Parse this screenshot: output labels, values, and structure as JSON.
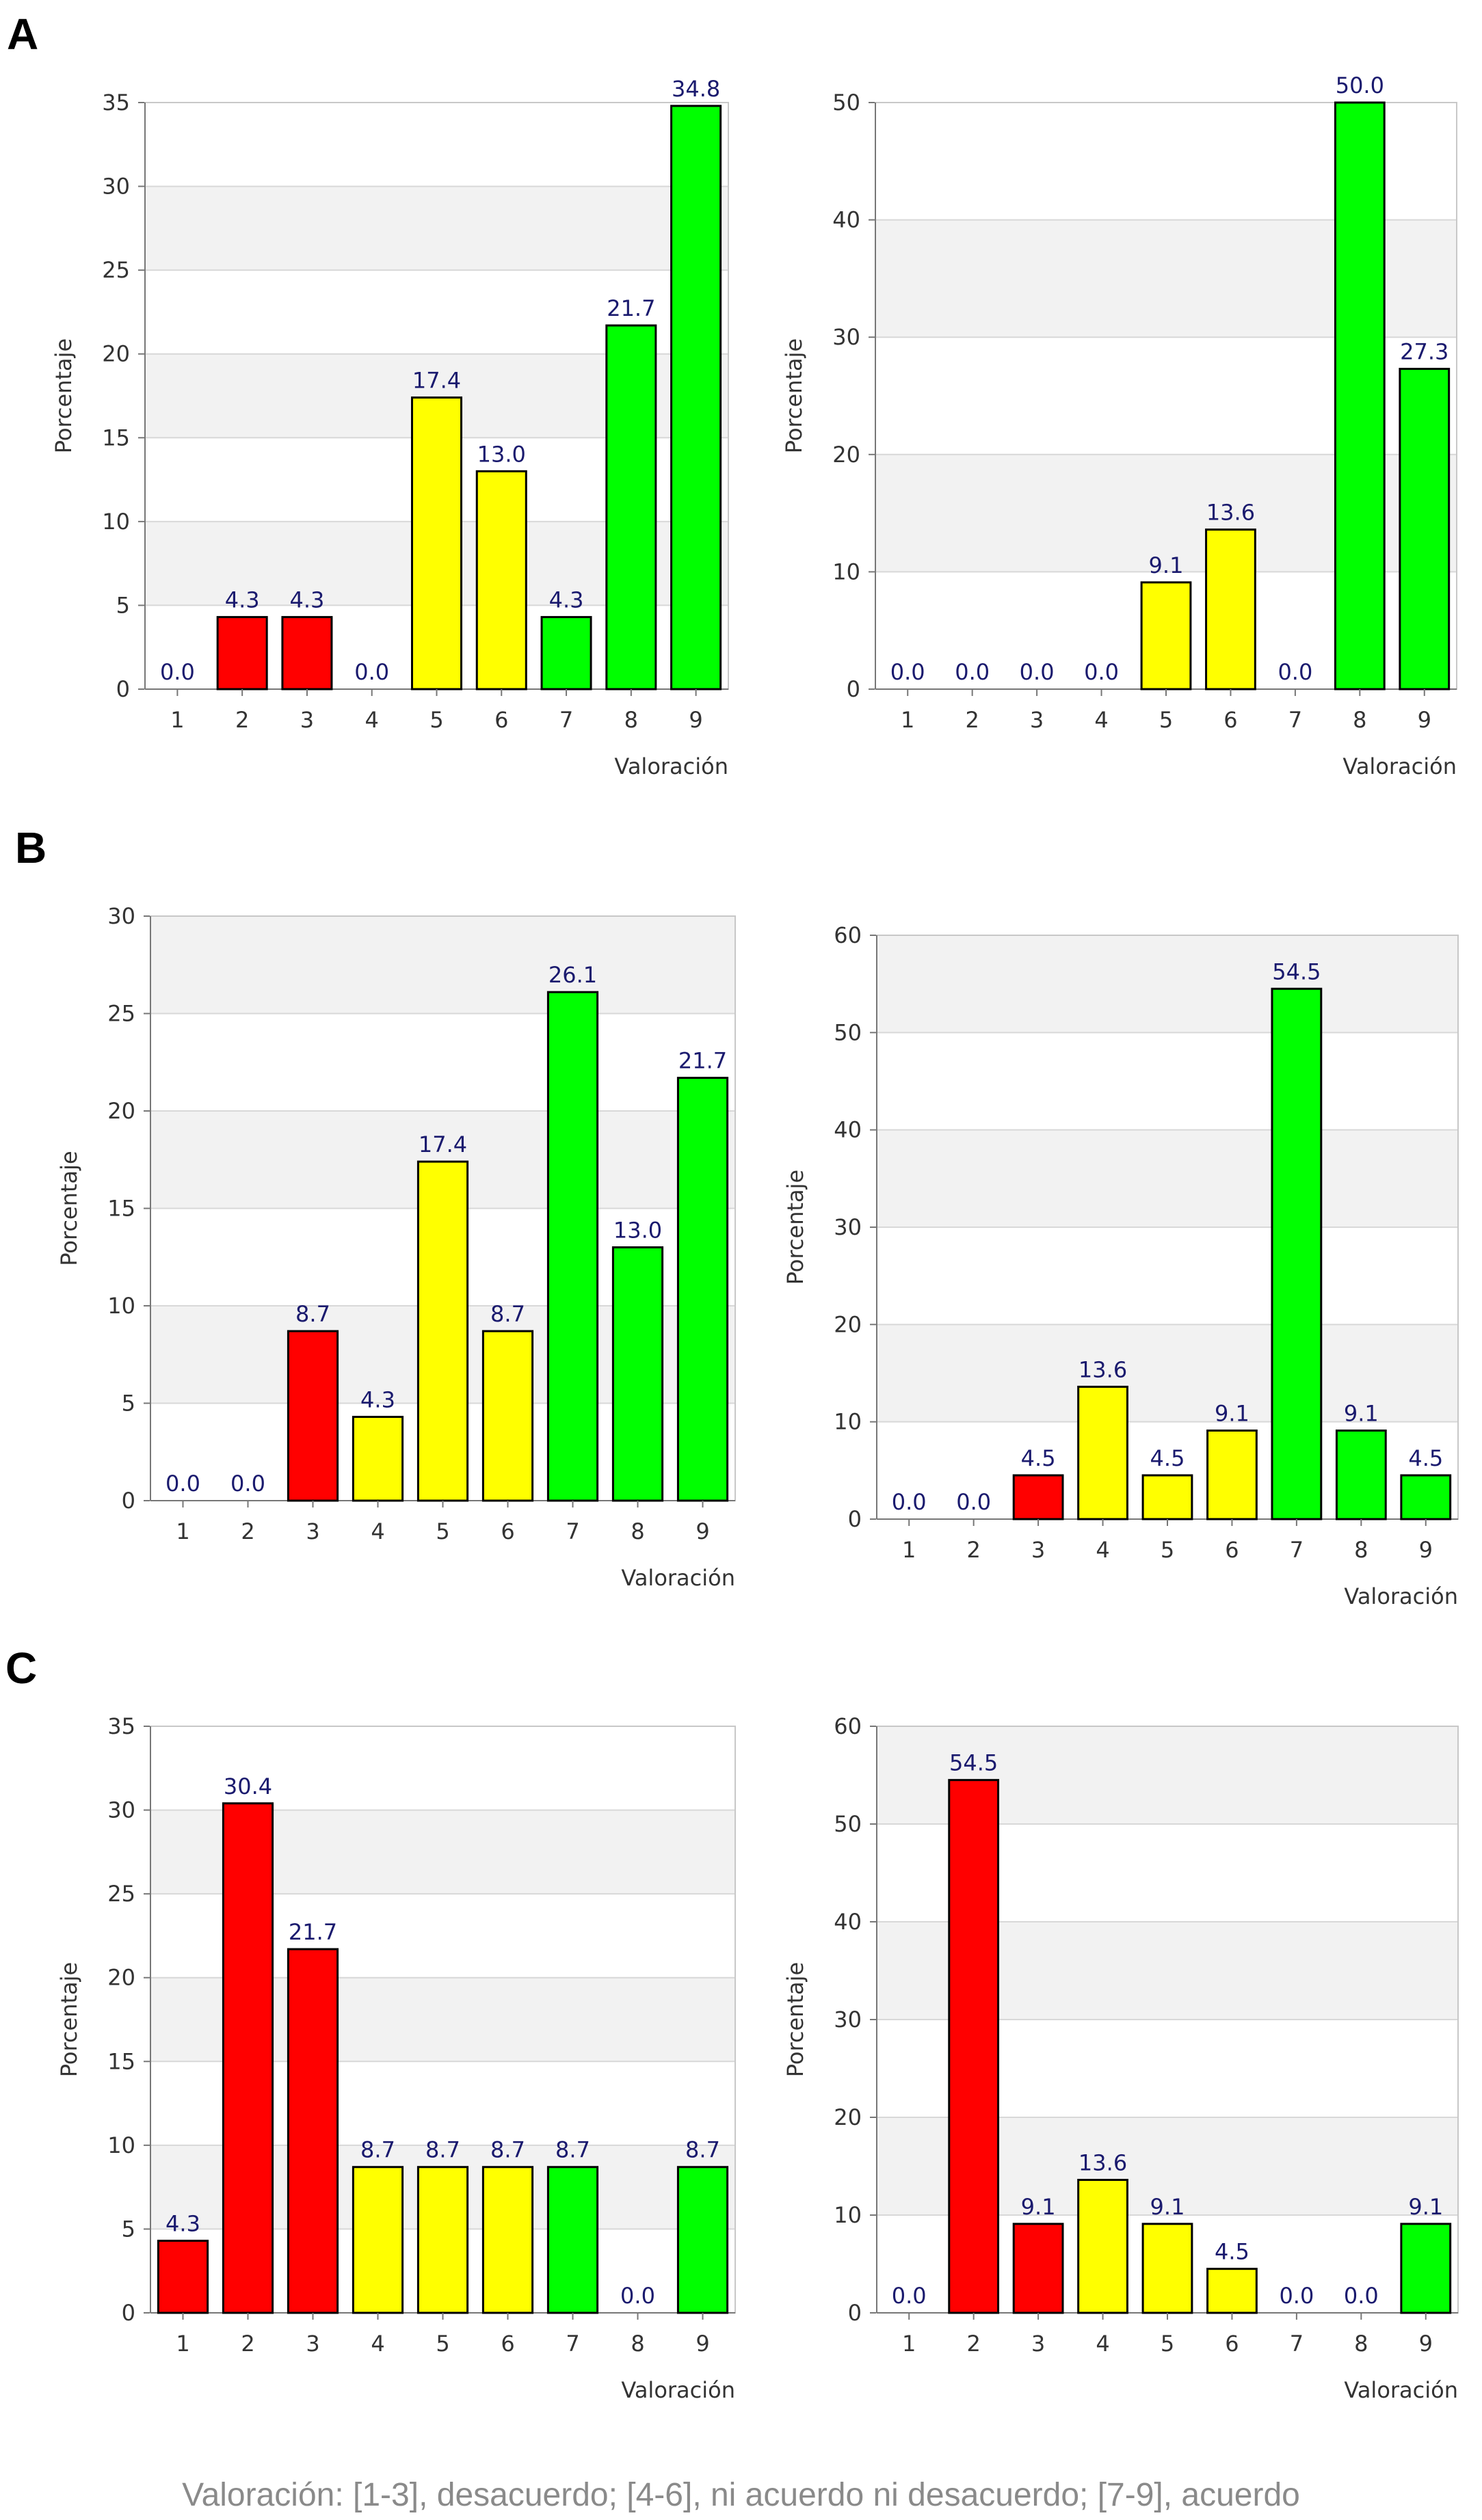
{
  "caption": "Valoración: [1-3], desacuerdo; [4-6], ni acuerdo ni desacuerdo; [7-9], acuerdo",
  "colors": {
    "disagree": "#ff0000",
    "neutral": "#ffff00",
    "agree": "#00ff00",
    "value_label": "#1a1a6e",
    "band": "#f2f2f2"
  },
  "chart_data": [
    {
      "type": "bar",
      "panel": "A",
      "position": "left",
      "show_panel_label": true,
      "title": "",
      "xlabel": "Valoración",
      "ylabel": "Porcentaje",
      "ylim": [
        0,
        35
      ],
      "yticks": [
        0,
        5,
        10,
        15,
        20,
        25,
        30,
        35
      ],
      "categories": [
        "1",
        "2",
        "3",
        "4",
        "5",
        "6",
        "7",
        "8",
        "9"
      ],
      "values": [
        0.0,
        4.3,
        4.3,
        0.0,
        17.4,
        13.0,
        4.3,
        21.7,
        34.8
      ],
      "labels": [
        "0.0",
        "4.3",
        "4.3",
        "0.0",
        "17.4",
        "13.0",
        "4.3",
        "21.7",
        "34.8"
      ]
    },
    {
      "type": "bar",
      "panel": "A",
      "position": "right",
      "show_panel_label": false,
      "title": "",
      "xlabel": "Valoración",
      "ylabel": "Porcentaje",
      "ylim": [
        0,
        50
      ],
      "yticks": [
        0,
        10,
        20,
        30,
        40,
        50
      ],
      "categories": [
        "1",
        "2",
        "3",
        "4",
        "5",
        "6",
        "7",
        "8",
        "9"
      ],
      "values": [
        0.0,
        0.0,
        0.0,
        0.0,
        9.1,
        13.6,
        0.0,
        50.0,
        27.3
      ],
      "labels": [
        "0.0",
        "0.0",
        "0.0",
        "0.0",
        "9.1",
        "13.6",
        "0.0",
        "50.0",
        "27.3"
      ]
    },
    {
      "type": "bar",
      "panel": "B",
      "position": "left",
      "show_panel_label": true,
      "title": "",
      "xlabel": "Valoración",
      "ylabel": "Porcentaje",
      "ylim": [
        0,
        30
      ],
      "yticks": [
        0,
        5,
        10,
        15,
        20,
        25,
        30
      ],
      "categories": [
        "1",
        "2",
        "3",
        "4",
        "5",
        "6",
        "7",
        "8",
        "9"
      ],
      "values": [
        0.0,
        0.0,
        8.7,
        4.3,
        17.4,
        8.7,
        26.1,
        13.0,
        21.7
      ],
      "labels": [
        "0.0",
        "0.0",
        "8.7",
        "4.3",
        "17.4",
        "8.7",
        "26.1",
        "13.0",
        "21.7"
      ]
    },
    {
      "type": "bar",
      "panel": "B",
      "position": "right",
      "show_panel_label": false,
      "title": "",
      "xlabel": "Valoración",
      "ylabel": "Porcentaje",
      "ylim": [
        0,
        60
      ],
      "yticks": [
        0,
        10,
        20,
        30,
        40,
        50,
        60
      ],
      "categories": [
        "1",
        "2",
        "3",
        "4",
        "5",
        "6",
        "7",
        "8",
        "9"
      ],
      "values": [
        0.0,
        0.0,
        4.5,
        13.6,
        4.5,
        9.1,
        54.5,
        9.1,
        4.5
      ],
      "labels": [
        "0.0",
        "0.0",
        "4.5",
        "13.6",
        "4.5",
        "9.1",
        "54.5",
        "9.1",
        "4.5"
      ]
    },
    {
      "type": "bar",
      "panel": "C",
      "position": "left",
      "show_panel_label": true,
      "title": "",
      "xlabel": "Valoración",
      "ylabel": "Porcentaje",
      "ylim": [
        0,
        35
      ],
      "yticks": [
        0,
        5,
        10,
        15,
        20,
        25,
        30,
        35
      ],
      "categories": [
        "1",
        "2",
        "3",
        "4",
        "5",
        "6",
        "7",
        "8",
        "9"
      ],
      "values": [
        4.3,
        30.4,
        21.7,
        8.7,
        8.7,
        8.7,
        8.7,
        0.0,
        8.7
      ],
      "labels": [
        "4.3",
        "30.4",
        "21.7",
        "8.7",
        "8.7",
        "8.7",
        "8.7",
        "0.0",
        "8.7"
      ]
    },
    {
      "type": "bar",
      "panel": "C",
      "position": "right",
      "show_panel_label": false,
      "title": "",
      "xlabel": "Valoración",
      "ylabel": "Porcentaje",
      "ylim": [
        0,
        60
      ],
      "yticks": [
        0,
        10,
        20,
        30,
        40,
        50,
        60
      ],
      "categories": [
        "1",
        "2",
        "3",
        "4",
        "5",
        "6",
        "7",
        "8",
        "9"
      ],
      "values": [
        0.0,
        54.5,
        9.1,
        13.6,
        9.1,
        4.5,
        0.0,
        0.0,
        9.1
      ],
      "labels": [
        "0.0",
        "54.5",
        "9.1",
        "13.6",
        "9.1",
        "4.5",
        "0.0",
        "0.0",
        "9.1"
      ]
    }
  ]
}
